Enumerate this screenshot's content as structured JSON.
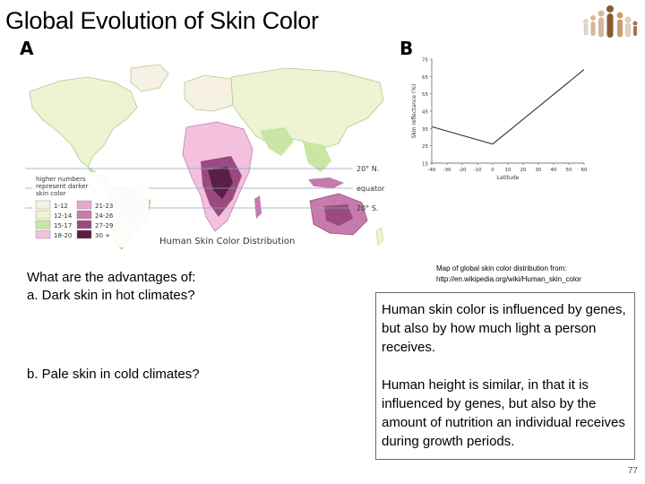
{
  "title": "Global Evolution of Skin Color",
  "panel_a": "A",
  "panel_b": "B",
  "map": {
    "title": "Human Skin Color Distribution",
    "legend_note": [
      "higher numbers",
      "represent darker",
      "skin color"
    ],
    "legend_items": [
      {
        "label": "1-12",
        "color": "#f7f0e4"
      },
      {
        "label": "12-14",
        "color": "#eef3d2"
      },
      {
        "label": "15-17",
        "color": "#c9e6a4"
      },
      {
        "label": "18-20",
        "color": "#f3c1de"
      },
      {
        "label": "21-23",
        "color": "#e3a8cc"
      },
      {
        "label": "24-26",
        "color": "#c57bab"
      },
      {
        "label": "27-29",
        "color": "#9b4a80"
      },
      {
        "label": "30 +",
        "color": "#5a1f45"
      }
    ],
    "lines": {
      "north": "20° N.",
      "equator": "equator",
      "south": "20° S."
    }
  },
  "chart_data": {
    "type": "line",
    "xlabel": "Latitude",
    "ylabel": "Skin reflectance (%)",
    "xticks": [
      -40,
      -30,
      -20,
      -10,
      0,
      10,
      20,
      30,
      40,
      50,
      60
    ],
    "yticks": [
      15,
      25,
      35,
      45,
      55,
      65,
      75
    ],
    "xlim": [
      -40,
      60
    ],
    "ylim": [
      15,
      75
    ],
    "x": [
      -40,
      0,
      60
    ],
    "y": [
      36,
      26,
      69
    ]
  },
  "question": {
    "heading": "What are the advantages of:",
    "a": "a. Dark skin in hot climates?",
    "b": "b. Pale skin in cold climates?"
  },
  "credit": {
    "line1": "Map of global skin color distribution from:",
    "line2": "http://en.wikipedia.org/wiki/Human_skin_color"
  },
  "info": {
    "p1": "Human skin color is influenced by genes, but also by how much light a person receives.",
    "p2": "Human height is similar, in that it is influenced by genes, but also by the amount of nutrition an individual receives during growth periods."
  },
  "page_number": "77",
  "colors": {
    "ocean": "#ffffff",
    "land_light": "#eef3d2",
    "land_green": "#c9e6a4",
    "dark_purple": "#5a1f45",
    "mid_purple": "#9b4a80",
    "pink": "#e3a8cc"
  }
}
